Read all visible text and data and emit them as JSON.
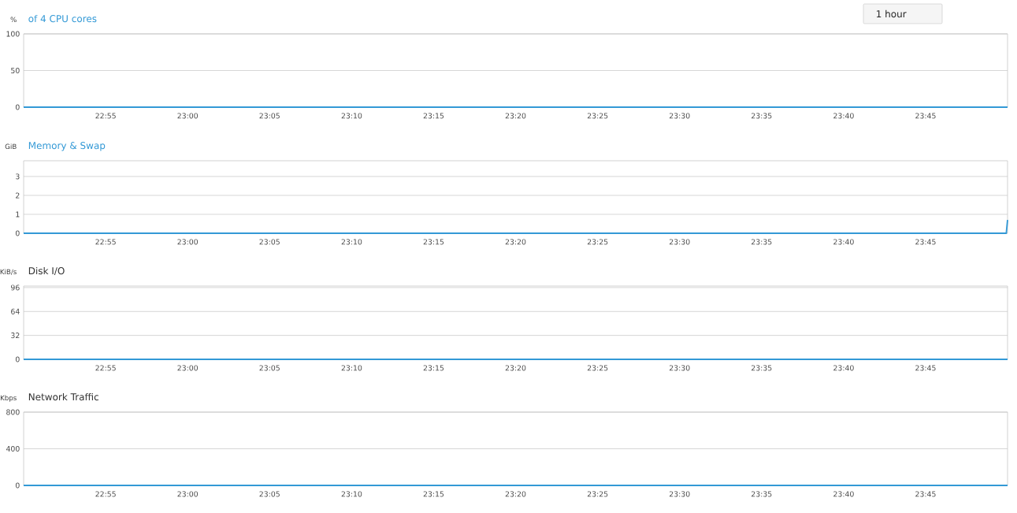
{
  "chart_data": [
    {
      "type": "line",
      "title": "of 4 CPU cores",
      "ylabel": "%",
      "annotations": [
        "1 hour"
      ],
      "grid": "y",
      "xlim": [
        22.8333,
        23.8333
      ],
      "ylim": [
        0,
        100
      ],
      "yticks": [
        0,
        50,
        100
      ],
      "xticks": [
        {
          "value": 22.9167,
          "label": "22:55"
        },
        {
          "value": 23.0,
          "label": "23:00"
        },
        {
          "value": 23.0833,
          "label": "23:05"
        },
        {
          "value": 23.1667,
          "label": "23:10"
        },
        {
          "value": 23.25,
          "label": "23:15"
        },
        {
          "value": 23.3333,
          "label": "23:20"
        },
        {
          "value": 23.4167,
          "label": "23:25"
        },
        {
          "value": 23.5,
          "label": "23:30"
        },
        {
          "value": 23.5833,
          "label": "23:35"
        },
        {
          "value": 23.6667,
          "label": "23:40"
        },
        {
          "value": 23.75,
          "label": "23:45"
        }
      ],
      "x": [
        22.8333,
        23.8333
      ],
      "series": [
        {
          "color": "#3399d6",
          "values": [
            0,
            0
          ]
        }
      ]
    },
    {
      "type": "line",
      "title": "Memory & Swap",
      "ylabel": "GiB",
      "grid": "y",
      "xlim": [
        22.8333,
        23.8333
      ],
      "ylim": [
        0,
        3.83
      ],
      "yticks": [
        0,
        1,
        2,
        3
      ],
      "xticks": [
        {
          "value": 22.9167,
          "label": "22:55"
        },
        {
          "value": 23.0,
          "label": "23:00"
        },
        {
          "value": 23.0833,
          "label": "23:05"
        },
        {
          "value": 23.1667,
          "label": "23:10"
        },
        {
          "value": 23.25,
          "label": "23:15"
        },
        {
          "value": 23.3333,
          "label": "23:20"
        },
        {
          "value": 23.4167,
          "label": "23:25"
        },
        {
          "value": 23.5,
          "label": "23:30"
        },
        {
          "value": 23.5833,
          "label": "23:35"
        },
        {
          "value": 23.6667,
          "label": "23:40"
        },
        {
          "value": 23.75,
          "label": "23:45"
        }
      ],
      "x": [
        22.8333,
        23.832,
        23.8333
      ],
      "series": [
        {
          "color": "#3399d6",
          "values": [
            0,
            0,
            0.7
          ]
        }
      ]
    },
    {
      "type": "line",
      "title": "Disk I/O",
      "ylabel": "KiB/s",
      "grid": "y",
      "xlim": [
        22.8333,
        23.8333
      ],
      "ylim": [
        0,
        98
      ],
      "yticks": [
        0,
        32,
        64,
        96
      ],
      "xticks": [
        {
          "value": 22.9167,
          "label": "22:55"
        },
        {
          "value": 23.0,
          "label": "23:00"
        },
        {
          "value": 23.0833,
          "label": "23:05"
        },
        {
          "value": 23.1667,
          "label": "23:10"
        },
        {
          "value": 23.25,
          "label": "23:15"
        },
        {
          "value": 23.3333,
          "label": "23:20"
        },
        {
          "value": 23.4167,
          "label": "23:25"
        },
        {
          "value": 23.5,
          "label": "23:30"
        },
        {
          "value": 23.5833,
          "label": "23:35"
        },
        {
          "value": 23.6667,
          "label": "23:40"
        },
        {
          "value": 23.75,
          "label": "23:45"
        }
      ],
      "x": [
        22.8333,
        23.8333
      ],
      "series": [
        {
          "color": "#3399d6",
          "values": [
            0,
            0
          ]
        }
      ]
    },
    {
      "type": "line",
      "title": "Network Traffic",
      "ylabel": "Kbps",
      "grid": "y",
      "xlim": [
        22.8333,
        23.8333
      ],
      "ylim": [
        0,
        800
      ],
      "yticks": [
        0,
        400,
        800
      ],
      "xticks": [
        {
          "value": 22.9167,
          "label": "22:55"
        },
        {
          "value": 23.0,
          "label": "23:00"
        },
        {
          "value": 23.0833,
          "label": "23:05"
        },
        {
          "value": 23.1667,
          "label": "23:10"
        },
        {
          "value": 23.25,
          "label": "23:15"
        },
        {
          "value": 23.3333,
          "label": "23:20"
        },
        {
          "value": 23.4167,
          "label": "23:25"
        },
        {
          "value": 23.5,
          "label": "23:30"
        },
        {
          "value": 23.5833,
          "label": "23:35"
        },
        {
          "value": 23.6667,
          "label": "23:40"
        },
        {
          "value": 23.75,
          "label": "23:45"
        }
      ],
      "x": [
        22.8333,
        23.8333
      ],
      "series": [
        {
          "color": "#3399d6",
          "values": [
            0,
            0
          ]
        }
      ]
    }
  ]
}
